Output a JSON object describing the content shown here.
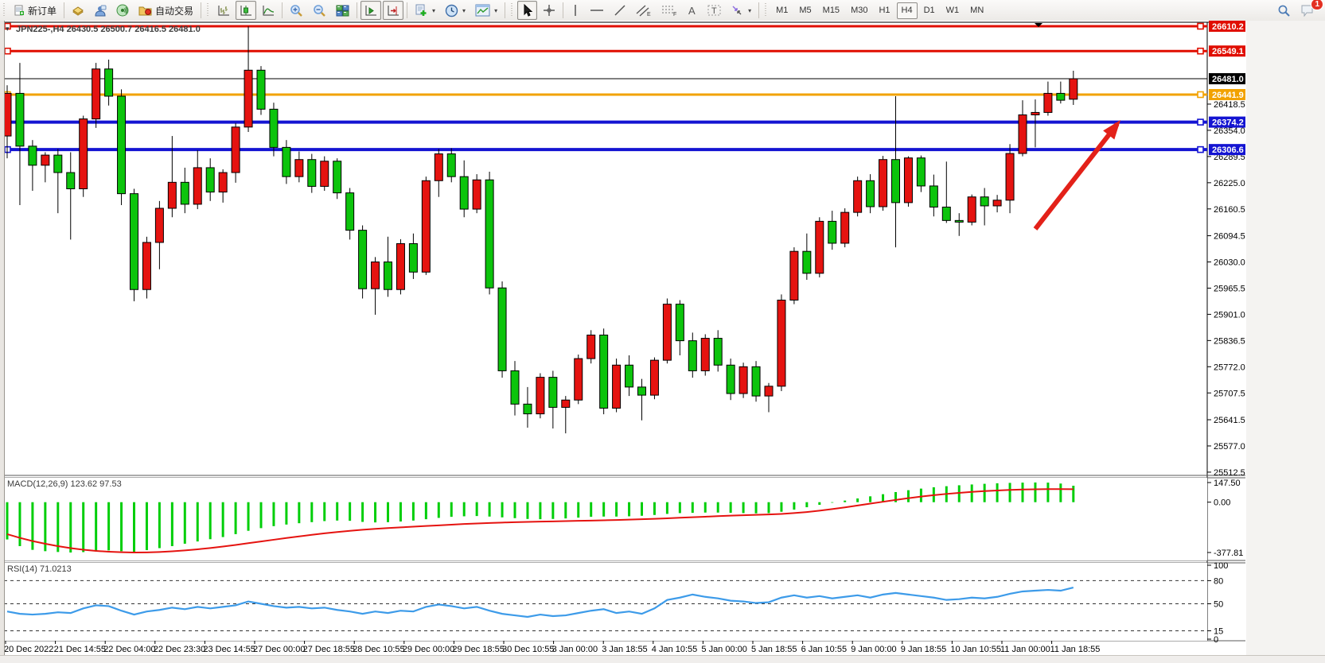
{
  "toolbar": {
    "new_order_label": "新订单",
    "autotrading_label": "自动交易",
    "timeframes": [
      "M1",
      "M5",
      "M15",
      "M30",
      "H1",
      "H4",
      "D1",
      "W1",
      "MN"
    ],
    "active_timeframe": "H4",
    "chat_badge": "1"
  },
  "chart": {
    "title": "JPN225-,H4  26430.5 26500.7 26416.5 26481.0",
    "macd_label": "MACD(12,26,9) 123.62 97.53",
    "rsi_label": "RSI(14) 71.0213"
  },
  "chart_data": {
    "type": "candlestick",
    "symbol": "JPN225-",
    "period": "H4",
    "current": {
      "open": 26430.5,
      "high": 26500.7,
      "low": 26416.5,
      "close": 26481.0
    },
    "colors": {
      "up": "#e51310",
      "down": "#0cc40c",
      "wick": "#000000",
      "macd_hist": "#00ce09",
      "macd_signal": "#e51310",
      "rsi_line": "#3d9be9",
      "level_red": "#e00e00",
      "level_orange": "#f2a200",
      "level_blue": "#1414d2",
      "bid_line": "#000000",
      "arrow": "#e32119"
    },
    "price_lines": [
      {
        "price": 26610.2,
        "color": "#e00e00",
        "width": 3,
        "badge": "#e00e00"
      },
      {
        "price": 26549.1,
        "color": "#e00e00",
        "width": 3,
        "badge": "#e00e00"
      },
      {
        "price": 26481.0,
        "color": "#000000",
        "width": 1,
        "badge": "#000000"
      },
      {
        "price": 26441.9,
        "color": "#f2a200",
        "width": 3,
        "badge": "#f2a200"
      },
      {
        "price": 26374.2,
        "color": "#1414d2",
        "width": 4,
        "badge": "#1414d2"
      },
      {
        "price": 26306.6,
        "color": "#1414d2",
        "width": 4,
        "badge": "#1414d2"
      }
    ],
    "y_ticks": [
      26418.5,
      26354.0,
      26289.5,
      26225.0,
      26160.5,
      26094.5,
      26030.0,
      25965.5,
      25901.0,
      25836.5,
      25772.0,
      25707.5,
      25641.5,
      25577.0,
      25512.5
    ],
    "x_labels": [
      "20 Dec 2022",
      "21 Dec 14:55",
      "22 Dec 04:00",
      "22 Dec 23:30",
      "23 Dec 14:55",
      "27 Dec 00:00",
      "27 Dec 18:55",
      "28 Dec 10:55",
      "29 Dec 00:00",
      "29 Dec 18:55",
      "30 Dec 10:55",
      "3 Jan 00:00",
      "3 Jan 18:55",
      "4 Jan 10:55",
      "5 Jan 00:00",
      "5 Jan 18:55",
      "6 Jan 10:55",
      "9 Jan 00:00",
      "9 Jan 18:55",
      "10 Jan 10:55",
      "11 Jan 00:00",
      "11 Jan 18:55"
    ],
    "ohlc": [
      [
        26340,
        26465,
        26285,
        26445
      ],
      [
        26445,
        26520,
        26170,
        26315
      ],
      [
        26315,
        26330,
        26205,
        26268
      ],
      [
        26268,
        26300,
        26226,
        26293
      ],
      [
        26293,
        26308,
        26150,
        26250
      ],
      [
        26250,
        26300,
        26085,
        26210
      ],
      [
        26210,
        26390,
        26190,
        26382
      ],
      [
        26382,
        26520,
        26360,
        26505
      ],
      [
        26505,
        26528,
        26415,
        26438
      ],
      [
        26438,
        26455,
        26170,
        26198
      ],
      [
        26198,
        26210,
        25933,
        25962
      ],
      [
        25962,
        26092,
        25940,
        26078
      ],
      [
        26078,
        26180,
        26012,
        26162
      ],
      [
        26162,
        26340,
        26140,
        26226
      ],
      [
        26226,
        26262,
        26150,
        26172
      ],
      [
        26172,
        26305,
        26160,
        26262
      ],
      [
        26262,
        26285,
        26180,
        26202
      ],
      [
        26202,
        26258,
        26176,
        26250
      ],
      [
        26250,
        26372,
        26225,
        26362
      ],
      [
        26362,
        26610,
        26350,
        26502
      ],
      [
        26502,
        26512,
        26392,
        26406
      ],
      [
        26406,
        26422,
        26290,
        26312
      ],
      [
        26312,
        26330,
        26222,
        26240
      ],
      [
        26240,
        26302,
        26226,
        26282
      ],
      [
        26282,
        26296,
        26200,
        26216
      ],
      [
        26216,
        26290,
        26205,
        26278
      ],
      [
        26278,
        26285,
        26185,
        26200
      ],
      [
        26200,
        26212,
        26085,
        26108
      ],
      [
        26108,
        26120,
        25940,
        25964
      ],
      [
        25964,
        26042,
        25900,
        26030
      ],
      [
        26030,
        26092,
        25944,
        25962
      ],
      [
        25962,
        26086,
        25950,
        26075
      ],
      [
        26075,
        26100,
        25988,
        26005
      ],
      [
        26005,
        26240,
        25998,
        26230
      ],
      [
        26230,
        26308,
        26190,
        26296
      ],
      [
        26296,
        26310,
        26226,
        26240
      ],
      [
        26240,
        26280,
        26140,
        26160
      ],
      [
        26160,
        26246,
        26150,
        26232
      ],
      [
        26232,
        26252,
        25950,
        25966
      ],
      [
        25966,
        25982,
        25745,
        25762
      ],
      [
        25762,
        25786,
        25652,
        25680
      ],
      [
        25680,
        25722,
        25622,
        25656
      ],
      [
        25656,
        25756,
        25645,
        25746
      ],
      [
        25746,
        25762,
        25620,
        25672
      ],
      [
        25672,
        25700,
        25608,
        25690
      ],
      [
        25690,
        25802,
        25680,
        25792
      ],
      [
        25792,
        25862,
        25780,
        25850
      ],
      [
        25850,
        25866,
        25655,
        25670
      ],
      [
        25670,
        25792,
        25660,
        25776
      ],
      [
        25776,
        25800,
        25700,
        25722
      ],
      [
        25722,
        25742,
        25640,
        25702
      ],
      [
        25702,
        25795,
        25692,
        25788
      ],
      [
        25788,
        25940,
        25780,
        25926
      ],
      [
        25926,
        25936,
        25800,
        25836
      ],
      [
        25836,
        25856,
        25745,
        25762
      ],
      [
        25762,
        25852,
        25750,
        25842
      ],
      [
        25842,
        25862,
        25760,
        25776
      ],
      [
        25776,
        25792,
        25690,
        25706
      ],
      [
        25706,
        25782,
        25695,
        25772
      ],
      [
        25772,
        25786,
        25686,
        25700
      ],
      [
        25700,
        25732,
        25660,
        25724
      ],
      [
        25724,
        25950,
        25712,
        25936
      ],
      [
        25936,
        26066,
        25926,
        26056
      ],
      [
        26056,
        26100,
        25986,
        26002
      ],
      [
        26002,
        26140,
        25992,
        26130
      ],
      [
        26130,
        26156,
        26060,
        26076
      ],
      [
        26076,
        26162,
        26066,
        26152
      ],
      [
        26152,
        26240,
        26142,
        26230
      ],
      [
        26230,
        26246,
        26150,
        26166
      ],
      [
        26166,
        26291,
        26156,
        26282
      ],
      [
        26282,
        26438,
        26066,
        26176
      ],
      [
        26176,
        26290,
        26166,
        26286
      ],
      [
        26286,
        26292,
        26202,
        26217
      ],
      [
        26217,
        26245,
        26142,
        26165
      ],
      [
        26165,
        26277,
        26126,
        26132
      ],
      [
        26132,
        26150,
        26094,
        26128
      ],
      [
        26128,
        26196,
        26120,
        26190
      ],
      [
        26190,
        26212,
        26120,
        26168
      ],
      [
        26168,
        26195,
        26152,
        26182
      ],
      [
        26182,
        26320,
        26150,
        26297
      ],
      [
        26297,
        26428,
        26290,
        26392
      ],
      [
        26392,
        26430,
        26312,
        26398
      ],
      [
        26398,
        26474,
        26390,
        26445
      ],
      [
        26445,
        26474,
        26420,
        26428
      ],
      [
        26430.5,
        26500.7,
        26416.5,
        26481.0
      ]
    ],
    "macd": {
      "name": "MACD(12,26,9)",
      "values": [
        123.62,
        97.53
      ],
      "y_ticks": [
        147.5,
        0.0,
        -377.81
      ],
      "hist": [
        -280,
        -330,
        -358,
        -368,
        -374,
        -378,
        -375,
        -370,
        -362,
        -368,
        -372,
        -360,
        -345,
        -330,
        -312,
        -295,
        -278,
        -262,
        -240,
        -215,
        -195,
        -180,
        -168,
        -158,
        -150,
        -142,
        -138,
        -140,
        -148,
        -152,
        -150,
        -145,
        -138,
        -128,
        -118,
        -110,
        -106,
        -104,
        -108,
        -114,
        -120,
        -126,
        -128,
        -126,
        -122,
        -116,
        -110,
        -108,
        -108,
        -106,
        -102,
        -96,
        -88,
        -82,
        -80,
        -78,
        -78,
        -80,
        -82,
        -84,
        -82,
        -72,
        -56,
        -38,
        -20,
        -4,
        12,
        28,
        44,
        60,
        76,
        90,
        102,
        112,
        120,
        127,
        133,
        138,
        142,
        145,
        147,
        148,
        147,
        140,
        123.62
      ],
      "signal": [
        -240,
        -268,
        -292,
        -312,
        -330,
        -345,
        -357,
        -366,
        -372,
        -376,
        -378,
        -377,
        -374,
        -369,
        -362,
        -354,
        -344,
        -333,
        -321,
        -308,
        -295,
        -282,
        -269,
        -257,
        -245,
        -234,
        -224,
        -215,
        -207,
        -200,
        -194,
        -189,
        -184,
        -179,
        -174,
        -169,
        -164,
        -160,
        -156,
        -153,
        -150,
        -148,
        -146,
        -144,
        -142,
        -140,
        -138,
        -136,
        -134,
        -131,
        -128,
        -125,
        -121,
        -117,
        -113,
        -109,
        -105,
        -101,
        -98,
        -95,
        -92,
        -88,
        -82,
        -74,
        -64,
        -52,
        -39,
        -25,
        -11,
        3,
        17,
        30,
        42,
        53,
        62,
        70,
        77,
        83,
        88,
        92,
        95,
        97,
        98,
        98,
        97.53
      ]
    },
    "rsi": {
      "name": "RSI(14)",
      "value": 71.0213,
      "levels": [
        80,
        50,
        15
      ],
      "y_ticks": [
        100,
        80,
        50,
        15,
        0
      ],
      "series": [
        40,
        37,
        36,
        37,
        39,
        38,
        44,
        48,
        47,
        41,
        36,
        40,
        42,
        45,
        43,
        46,
        44,
        46,
        48,
        53,
        50,
        47,
        45,
        46,
        44,
        45,
        42,
        40,
        37,
        40,
        38,
        41,
        40,
        46,
        49,
        47,
        44,
        46,
        41,
        37,
        35,
        33,
        36,
        34,
        35,
        38,
        41,
        43,
        38,
        40,
        37,
        44,
        55,
        58,
        62,
        59,
        57,
        54,
        53,
        51,
        52,
        58,
        61,
        58,
        60,
        57,
        59,
        61,
        58,
        62,
        64,
        62,
        60,
        58,
        55,
        56,
        58,
        57,
        59,
        63,
        66,
        67,
        68,
        67,
        71.02
      ]
    },
    "annotation_arrow": {
      "from": [
        1301,
        288
      ],
      "to": [
        1408,
        151
      ],
      "color": "#e32119"
    }
  }
}
